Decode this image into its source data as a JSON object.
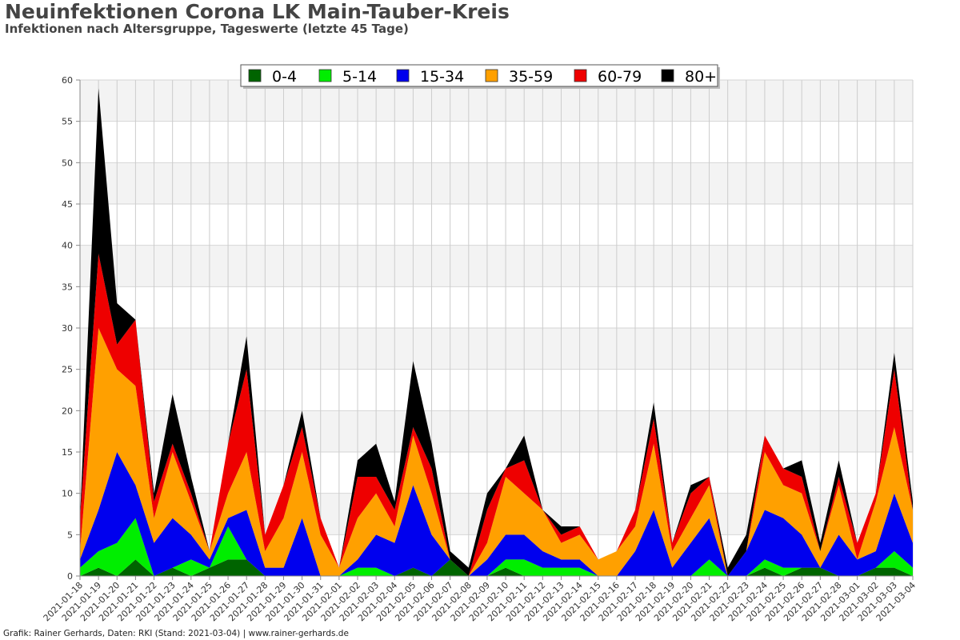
{
  "title": "Neuinfektionen Corona LK Main-Tauber-Kreis",
  "subtitle": "Infektionen nach Altersgruppe, Tageswerte (letzte 45 Tage)",
  "credit": "Grafik: Rainer Gerhards, Daten: RKI (Stand: 2021-03-04) | www.rainer-gerhards.de",
  "chart_data": {
    "type": "area",
    "stacked": true,
    "ylim": [
      0,
      60
    ],
    "yticks": [
      0,
      5,
      10,
      15,
      20,
      25,
      30,
      35,
      40,
      45,
      50,
      55,
      60
    ],
    "grid": true,
    "legend_position": "top-center",
    "x": [
      "2021-01-18",
      "2021-01-19",
      "2021-01-20",
      "2021-01-21",
      "2021-01-22",
      "2021-01-23",
      "2021-01-24",
      "2021-01-25",
      "2021-01-26",
      "2021-01-27",
      "2021-01-28",
      "2021-01-29",
      "2021-01-30",
      "2021-01-31",
      "2021-02-01",
      "2021-02-02",
      "2021-02-03",
      "2021-02-04",
      "2021-02-05",
      "2021-02-06",
      "2021-02-07",
      "2021-02-08",
      "2021-02-09",
      "2021-02-10",
      "2021-02-11",
      "2021-02-12",
      "2021-02-13",
      "2021-02-14",
      "2021-02-15",
      "2021-02-16",
      "2021-02-17",
      "2021-02-18",
      "2021-02-19",
      "2021-02-20",
      "2021-02-21",
      "2021-02-22",
      "2021-02-23",
      "2021-02-24",
      "2021-02-25",
      "2021-02-26",
      "2021-02-27",
      "2021-02-28",
      "2021-03-01",
      "2021-03-02",
      "2021-03-03",
      "2021-03-04"
    ],
    "x_labels": [
      "2021-01-18",
      "2021-01-19",
      "2021-01-20",
      "2021-01-21",
      "2021-01-22",
      "2021-01-23",
      "2021-01-24",
      "2021-01-25",
      "2021-01-26",
      "2021-01-27",
      "2021-01-28",
      "2021-01-29",
      "2021-01-30",
      "2021-01-31",
      "2021-02-01",
      "2021-02-02",
      "2021-02-03",
      "2021-02-04",
      "2021-02-05",
      "2021-02-06",
      "2021-02-07",
      "2021-02-08",
      "2021-02-09",
      "2021-02-10",
      "2021-02-11",
      "2021-02-12",
      "2021-02-13",
      "2021-02-14",
      "2021-02-15",
      "2021-02-16",
      "2021-02-17",
      "2021-02-18",
      "2021-02-19",
      "2021-02-20",
      "2021-02-21",
      "2021-02-22",
      "2021-02-23",
      "2021-02-24",
      "2021-02-25",
      "2021-02-26",
      "2021-02-27",
      "2021-02-28",
      "2021-03-01",
      "2021-03-02",
      "2021-03-03",
      "2021-03-04"
    ],
    "series": [
      {
        "name": "0-4",
        "color": "#006400",
        "values": [
          0,
          1,
          0,
          2,
          0,
          1,
          0,
          1,
          2,
          2,
          0,
          0,
          0,
          0,
          0,
          0,
          0,
          0,
          1,
          0,
          2,
          0,
          0,
          1,
          0,
          0,
          0,
          0,
          0,
          0,
          0,
          0,
          0,
          0,
          0,
          0,
          0,
          1,
          0,
          1,
          1,
          0,
          0,
          1,
          1,
          0
        ]
      },
      {
        "name": "5-14",
        "color": "#00ee00",
        "values": [
          1,
          2,
          4,
          5,
          0,
          0,
          2,
          0,
          4,
          0,
          0,
          0,
          0,
          0,
          0,
          1,
          1,
          0,
          0,
          0,
          0,
          0,
          0,
          1,
          2,
          1,
          1,
          1,
          0,
          0,
          0,
          0,
          0,
          0,
          2,
          0,
          0,
          1,
          1,
          0,
          0,
          0,
          0,
          0,
          2,
          1
        ]
      },
      {
        "name": "15-34",
        "color": "#0000ee",
        "values": [
          1,
          5,
          11,
          4,
          4,
          6,
          3,
          1,
          1,
          6,
          1,
          1,
          7,
          0,
          0,
          1,
          4,
          4,
          10,
          5,
          0,
          0,
          2,
          3,
          3,
          2,
          1,
          1,
          0,
          0,
          3,
          8,
          1,
          4,
          5,
          0,
          3,
          6,
          6,
          4,
          0,
          5,
          2,
          2,
          7,
          3
        ]
      },
      {
        "name": "35-59",
        "color": "#ffa000",
        "values": [
          1,
          22,
          10,
          12,
          3,
          8,
          4,
          1,
          3,
          7,
          2,
          6,
          8,
          5,
          1,
          5,
          5,
          2,
          6,
          5,
          0,
          0,
          2,
          7,
          5,
          5,
          2,
          3,
          2,
          3,
          3,
          8,
          2,
          3,
          4,
          0,
          0,
          7,
          4,
          5,
          2,
          6,
          0,
          6,
          8,
          4
        ]
      },
      {
        "name": "60-79",
        "color": "#ee0000",
        "values": [
          4,
          9,
          3,
          8,
          2,
          1,
          1,
          0,
          6,
          10,
          2,
          4,
          3,
          2,
          0,
          5,
          2,
          2,
          1,
          3,
          0,
          0,
          4,
          1,
          4,
          0,
          1,
          1,
          0,
          0,
          2,
          3,
          1,
          3,
          1,
          0,
          0,
          2,
          2,
          2,
          0,
          1,
          2,
          1,
          7,
          0
        ]
      },
      {
        "name": "80+",
        "color": "#000000",
        "values": [
          0,
          20,
          5,
          0,
          1,
          6,
          2,
          0,
          0,
          4,
          0,
          0,
          2,
          0,
          0,
          2,
          4,
          1,
          8,
          3,
          1,
          1,
          2,
          0,
          3,
          0,
          1,
          0,
          0,
          0,
          0,
          2,
          0,
          1,
          0,
          1,
          2,
          0,
          0,
          2,
          1,
          2,
          0,
          0,
          2,
          1
        ]
      }
    ]
  }
}
